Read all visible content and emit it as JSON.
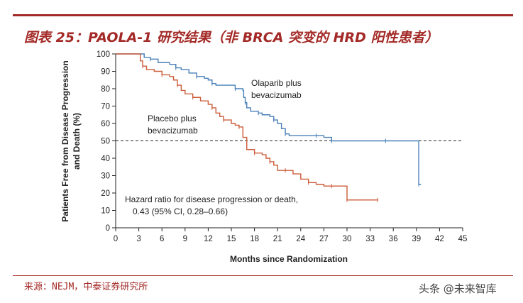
{
  "figure": {
    "title": "图表 25：PAOLA-1 研究结果（非 BRCA 突变的 HRD 阳性患者）",
    "source": "来源：NEJM，中泰证券研究所",
    "watermark": "头条 @未来智库"
  },
  "chart_data": {
    "type": "line",
    "title": "",
    "xlabel": "Months since Randomization",
    "ylabel_line1": "Patients Free from Disease Progression",
    "ylabel_line2": "and Death (%)",
    "xlim": [
      0,
      45
    ],
    "ylim": [
      0,
      100
    ],
    "xticks": [
      0,
      3,
      6,
      9,
      12,
      15,
      18,
      21,
      24,
      27,
      30,
      33,
      36,
      39,
      42,
      45
    ],
    "yticks": [
      0,
      10,
      20,
      30,
      40,
      50,
      60,
      70,
      80,
      90,
      100
    ],
    "reference_line": {
      "y": 50,
      "style": "dashed"
    },
    "series": [
      {
        "name": "Olaparib plus bevacizumab",
        "label_line1": "Olaparib plus",
        "label_line2": "bevacizumab",
        "color": "#4a80b9",
        "points": [
          [
            0,
            100
          ],
          [
            3.5,
            100
          ],
          [
            3.7,
            98
          ],
          [
            4.5,
            97
          ],
          [
            5.5,
            95
          ],
          [
            7,
            94
          ],
          [
            7.8,
            92
          ],
          [
            8.5,
            91
          ],
          [
            9.5,
            89
          ],
          [
            10.5,
            87
          ],
          [
            11.5,
            86
          ],
          [
            12,
            85
          ],
          [
            12.5,
            83
          ],
          [
            13,
            82
          ],
          [
            15,
            82
          ],
          [
            15.5,
            80
          ],
          [
            16.5,
            79
          ],
          [
            16.6,
            75
          ],
          [
            16.8,
            72
          ],
          [
            17,
            69
          ],
          [
            17.5,
            67
          ],
          [
            18.5,
            66
          ],
          [
            19,
            65
          ],
          [
            20,
            64
          ],
          [
            20.5,
            62
          ],
          [
            21,
            60
          ],
          [
            21.5,
            57
          ],
          [
            22,
            54
          ],
          [
            22.5,
            53
          ],
          [
            24,
            53
          ],
          [
            26,
            53
          ],
          [
            27,
            52
          ],
          [
            27.5,
            52
          ],
          [
            28,
            50
          ],
          [
            30,
            50
          ],
          [
            32,
            50
          ],
          [
            35,
            50
          ],
          [
            37,
            50
          ],
          [
            39.3,
            50
          ],
          [
            39.3,
            25
          ],
          [
            39.6,
            25
          ]
        ]
      },
      {
        "name": "Placebo plus bevacizumab",
        "label_line1": "Placebo plus",
        "label_line2": "bevacizumab",
        "color": "#cc5d3a",
        "points": [
          [
            0,
            100
          ],
          [
            3,
            100
          ],
          [
            3.2,
            96
          ],
          [
            3.5,
            93
          ],
          [
            4,
            91
          ],
          [
            5,
            90
          ],
          [
            6,
            88
          ],
          [
            7,
            87
          ],
          [
            7.5,
            85
          ],
          [
            8,
            82
          ],
          [
            8.5,
            79
          ],
          [
            9,
            77
          ],
          [
            10,
            75
          ],
          [
            11,
            73
          ],
          [
            12,
            71
          ],
          [
            12.5,
            69
          ],
          [
            13,
            66
          ],
          [
            13.5,
            64
          ],
          [
            14,
            62
          ],
          [
            15,
            60
          ],
          [
            15.5,
            59
          ],
          [
            16,
            58
          ],
          [
            16.5,
            52
          ],
          [
            17,
            45
          ],
          [
            18,
            43
          ],
          [
            19,
            42
          ],
          [
            19.5,
            40
          ],
          [
            20,
            38
          ],
          [
            20.5,
            36
          ],
          [
            21,
            33
          ],
          [
            22,
            33
          ],
          [
            23,
            31
          ],
          [
            24,
            28
          ],
          [
            25,
            26
          ],
          [
            26,
            25
          ],
          [
            27,
            24
          ],
          [
            28,
            24
          ],
          [
            29,
            24
          ],
          [
            29.8,
            24
          ],
          [
            30,
            16
          ],
          [
            31,
            16
          ],
          [
            33,
            16
          ],
          [
            34,
            16
          ]
        ]
      }
    ],
    "annotation_line1": "Hazard ratio for disease progression or death,",
    "annotation_line2": "0.43 (95% CI, 0.28–0.66)"
  }
}
